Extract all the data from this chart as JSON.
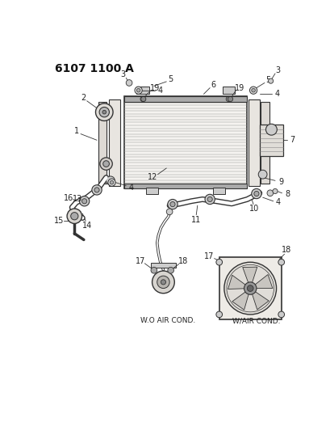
{
  "title": "6107 1100 A",
  "bg_color": "#ffffff",
  "lc": "#333333",
  "lfs": 7,
  "figsize": [
    4.1,
    5.33
  ],
  "dpi": 100,
  "wo_label": "W.O AIR COND.",
  "wac_label": "W/AIR COND."
}
